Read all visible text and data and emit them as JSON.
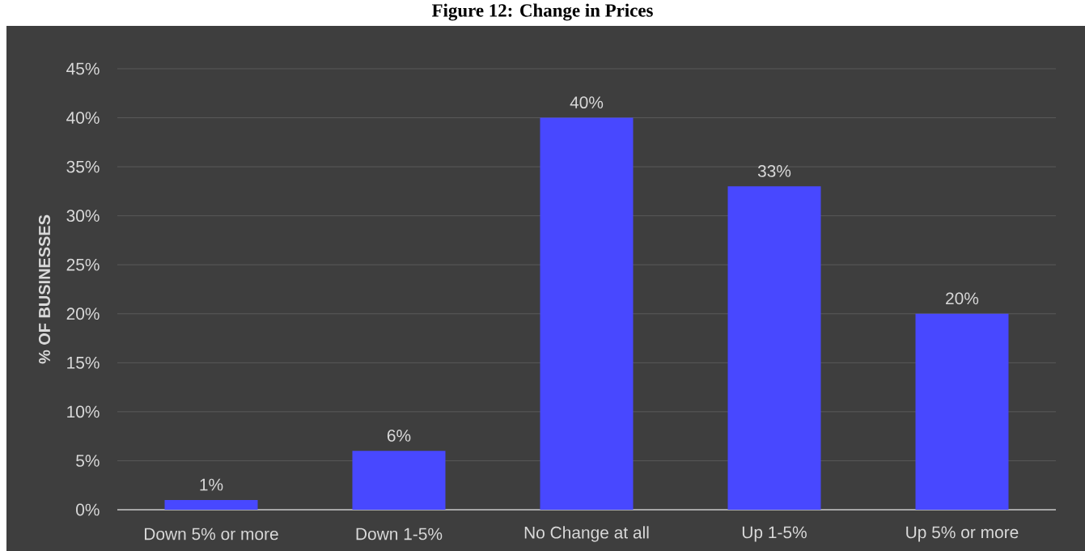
{
  "chart_data": {
    "type": "bar",
    "title": "Figure 12: Change in Prices",
    "ylabel": "% OF BUSINESSES",
    "categories": [
      "Down 5% or more",
      "Down 1-5%",
      "No Change at all",
      "Up 1-5%",
      "Up 5% or more"
    ],
    "values": [
      1,
      6,
      40,
      33,
      20
    ],
    "value_labels": [
      "1%",
      "6%",
      "40%",
      "33%",
      "20%"
    ],
    "color": "#4848ff",
    "ylim": [
      0,
      45
    ],
    "yticks": [
      {
        "value": 0,
        "label": "0%"
      },
      {
        "value": 5,
        "label": "5%"
      },
      {
        "value": 10,
        "label": "10%"
      },
      {
        "value": 15,
        "label": "15%"
      },
      {
        "value": 20,
        "label": "20%"
      },
      {
        "value": 25,
        "label": "25%"
      },
      {
        "value": 30,
        "label": "30%"
      },
      {
        "value": 35,
        "label": "35%"
      },
      {
        "value": 40,
        "label": "40%"
      },
      {
        "value": 45,
        "label": "45%"
      }
    ],
    "grid": "y"
  }
}
